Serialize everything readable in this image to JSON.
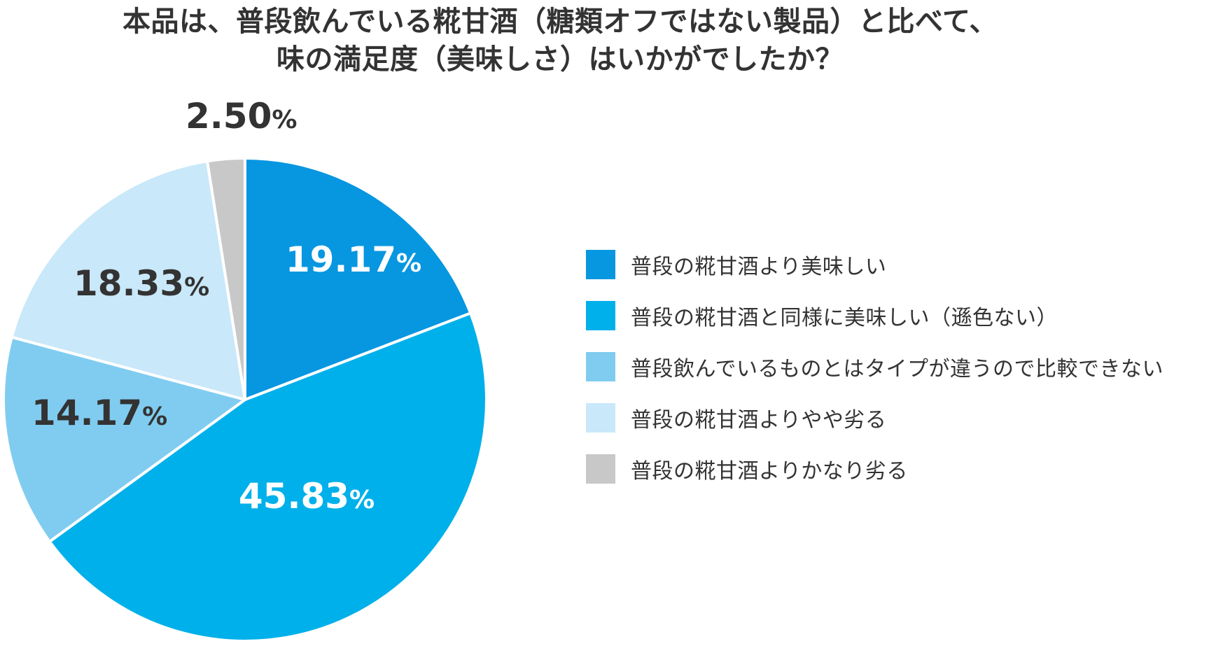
{
  "chart_data": {
    "type": "pie",
    "title_lines": [
      "本品は、普段飲んでいる糀甘酒（糖類オフではない製品）と比べて、",
      "味の満足度（美味しさ）はいかがでしたか？"
    ],
    "unit": "%",
    "start_angle_deg": 0,
    "direction": "clockwise",
    "slices": [
      {
        "label": "普段の糀甘酒より美味しい",
        "value": 19.17,
        "display": "19.17",
        "color": "#0796E0",
        "text_color": "#ffffff"
      },
      {
        "label": "普段の糀甘酒と同様に美味しい（遜色ない）",
        "value": 45.83,
        "display": "45.83",
        "color": "#00B0EA",
        "text_color": "#ffffff"
      },
      {
        "label": "普段飲んでいるものとはタイプが違うので比較できない",
        "value": 14.17,
        "display": "14.17",
        "color": "#80CCF0",
        "text_color": "#333333"
      },
      {
        "label": "普段の糀甘酒よりやや劣る",
        "value": 18.33,
        "display": "18.33",
        "color": "#C9E8F9",
        "text_color": "#333333"
      },
      {
        "label": "普段の糀甘酒よりかなり劣る",
        "value": 2.5,
        "display": "2.50",
        "color": "#C8C8C8",
        "text_color": "#333333"
      }
    ],
    "legend_position": "right"
  }
}
